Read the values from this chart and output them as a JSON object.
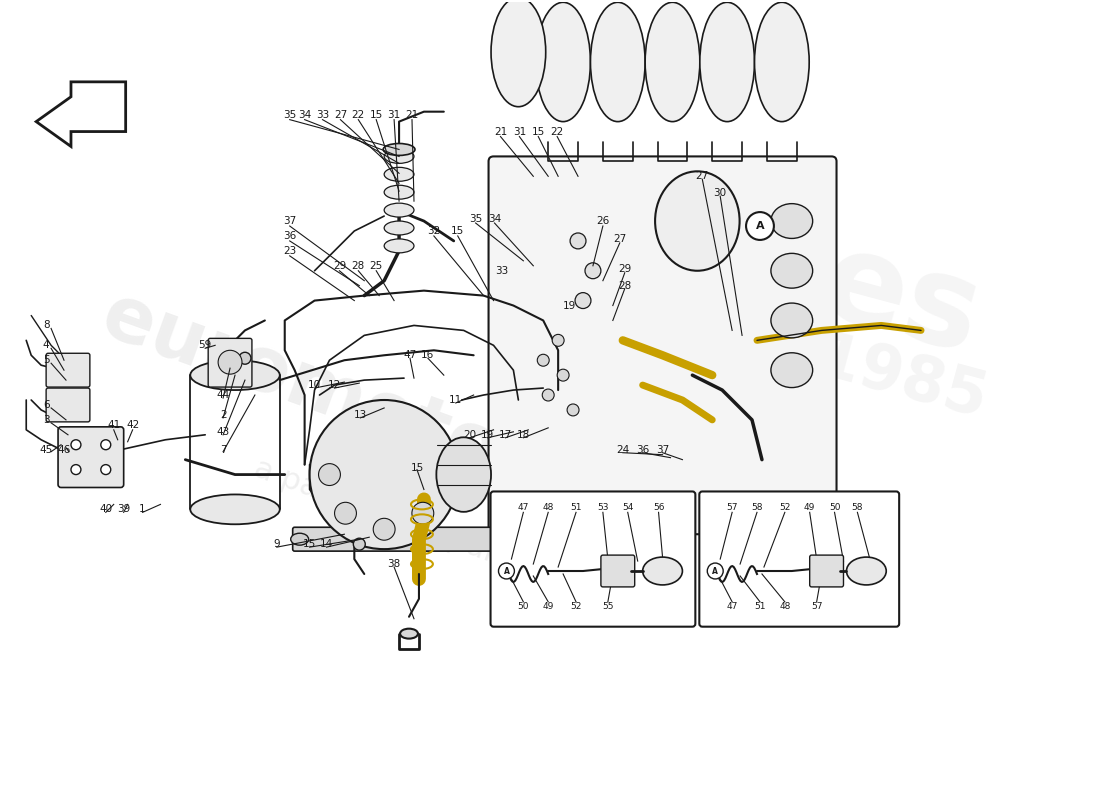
{
  "bg_color": "#ffffff",
  "watermark1": "euromotorparts",
  "watermark2": "a passion for parts.com",
  "wm_color": "#cccccc",
  "dc": "#1a1a1a",
  "hc": "#c8a000",
  "lc": "#888888",
  "arrow_color": "#000000",
  "label_fs": 7.5,
  "small_fs": 6.5,
  "main_labels": [
    [
      285,
      113,
      "35"
    ],
    [
      300,
      113,
      "34"
    ],
    [
      318,
      113,
      "33"
    ],
    [
      336,
      113,
      "27"
    ],
    [
      354,
      113,
      "22"
    ],
    [
      372,
      113,
      "15"
    ],
    [
      390,
      113,
      "31"
    ],
    [
      408,
      113,
      "21"
    ],
    [
      497,
      130,
      "21"
    ],
    [
      516,
      130,
      "31"
    ],
    [
      535,
      130,
      "15"
    ],
    [
      554,
      130,
      "22"
    ],
    [
      285,
      220,
      "37"
    ],
    [
      285,
      235,
      "36"
    ],
    [
      285,
      250,
      "23"
    ],
    [
      335,
      265,
      "29"
    ],
    [
      354,
      265,
      "28"
    ],
    [
      372,
      265,
      "25"
    ],
    [
      430,
      230,
      "32"
    ],
    [
      454,
      230,
      "15"
    ],
    [
      472,
      218,
      "35"
    ],
    [
      491,
      218,
      "34"
    ],
    [
      600,
      220,
      "26"
    ],
    [
      617,
      238,
      "27"
    ],
    [
      622,
      268,
      "29"
    ],
    [
      622,
      285,
      "28"
    ],
    [
      700,
      175,
      "27"
    ],
    [
      718,
      192,
      "30"
    ],
    [
      498,
      270,
      "33"
    ],
    [
      566,
      305,
      "19"
    ],
    [
      40,
      325,
      "8"
    ],
    [
      40,
      345,
      "4"
    ],
    [
      40,
      360,
      "5"
    ],
    [
      40,
      405,
      "6"
    ],
    [
      40,
      420,
      "3"
    ],
    [
      108,
      425,
      "41"
    ],
    [
      127,
      425,
      "42"
    ],
    [
      40,
      450,
      "45"
    ],
    [
      58,
      450,
      "46"
    ],
    [
      100,
      510,
      "40"
    ],
    [
      118,
      510,
      "39"
    ],
    [
      137,
      510,
      "1"
    ],
    [
      200,
      345,
      "59"
    ],
    [
      218,
      395,
      "44"
    ],
    [
      218,
      415,
      "2"
    ],
    [
      218,
      432,
      "43"
    ],
    [
      218,
      450,
      "7"
    ],
    [
      310,
      385,
      "10"
    ],
    [
      330,
      385,
      "12"
    ],
    [
      356,
      415,
      "13"
    ],
    [
      272,
      545,
      "9"
    ],
    [
      305,
      545,
      "15"
    ],
    [
      322,
      545,
      "14"
    ],
    [
      390,
      565,
      "38"
    ],
    [
      406,
      355,
      "47"
    ],
    [
      424,
      355,
      "16"
    ],
    [
      452,
      400,
      "11"
    ],
    [
      466,
      435,
      "20"
    ],
    [
      484,
      435,
      "19"
    ],
    [
      502,
      435,
      "17"
    ],
    [
      520,
      435,
      "18"
    ],
    [
      413,
      468,
      "15"
    ],
    [
      620,
      450,
      "24"
    ],
    [
      640,
      450,
      "36"
    ],
    [
      660,
      450,
      "37"
    ]
  ],
  "inset1_labels_top": [
    [
      520,
      508,
      "47"
    ],
    [
      545,
      508,
      "48"
    ],
    [
      573,
      508,
      "51"
    ],
    [
      600,
      508,
      "53"
    ],
    [
      625,
      508,
      "54"
    ],
    [
      656,
      508,
      "56"
    ]
  ],
  "inset1_labels_bot": [
    [
      520,
      608,
      "50"
    ],
    [
      545,
      608,
      "49"
    ],
    [
      573,
      608,
      "52"
    ],
    [
      605,
      608,
      "55"
    ]
  ],
  "inset2_labels_top": [
    [
      730,
      508,
      "57"
    ],
    [
      755,
      508,
      "58"
    ],
    [
      783,
      508,
      "52"
    ],
    [
      808,
      508,
      "49"
    ],
    [
      833,
      508,
      "50"
    ],
    [
      856,
      508,
      "58"
    ]
  ],
  "inset2_labels_bot": [
    [
      730,
      608,
      "47"
    ],
    [
      758,
      608,
      "51"
    ],
    [
      783,
      608,
      "48"
    ],
    [
      815,
      608,
      "57"
    ]
  ]
}
